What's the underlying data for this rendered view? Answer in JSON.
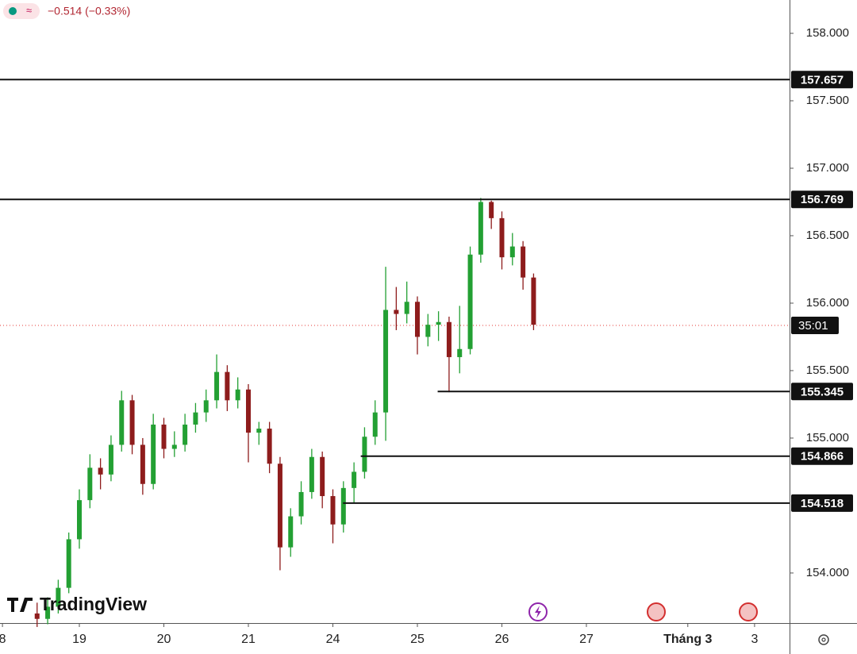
{
  "chart_data": {
    "type": "candlestick",
    "change_text": "−0.514 (−0.33%)",
    "watermark": "TradingView",
    "up_color": "#23a033",
    "down_color": "#8e1c1c",
    "xlim": [
      0.061,
      9.404
    ],
    "ylim": [
      153.629,
      158.247
    ],
    "xticks": [
      {
        "value": 0.09,
        "label": "8"
      },
      {
        "value": 1,
        "label": "19"
      },
      {
        "value": 2,
        "label": "20"
      },
      {
        "value": 3,
        "label": "21"
      },
      {
        "value": 4,
        "label": "24"
      },
      {
        "value": 5,
        "label": "25"
      },
      {
        "value": 6,
        "label": "26"
      },
      {
        "value": 7,
        "label": "27"
      },
      {
        "value": 8.2,
        "label": "Tháng 3"
      },
      {
        "value": 8.99,
        "label": "3"
      }
    ],
    "yticks": [
      {
        "value": 154,
        "label": "154.000"
      },
      {
        "value": 155,
        "label": "155.000"
      },
      {
        "value": 155.5,
        "label": "155.500"
      },
      {
        "value": 156,
        "label": "156.000"
      },
      {
        "value": 156.5,
        "label": "156.500"
      },
      {
        "value": 157,
        "label": "157.000"
      },
      {
        "value": 157.5,
        "label": "157.500"
      },
      {
        "value": 158,
        "label": "158.000"
      }
    ],
    "x": [
      0.5,
      0.625,
      0.75,
      0.875,
      1,
      1.125,
      1.25,
      1.375,
      1.5,
      1.625,
      1.75,
      1.875,
      2,
      2.125,
      2.25,
      2.375,
      2.5,
      2.625,
      2.75,
      2.875,
      3,
      3.125,
      3.25,
      3.375,
      3.5,
      3.625,
      3.75,
      3.875,
      4,
      4.125,
      4.25,
      4.375,
      4.5,
      4.625,
      4.75,
      4.875,
      5,
      5.125,
      5.25,
      5.375,
      5.5,
      5.625,
      5.75,
      5.875,
      6,
      6.125,
      6.25,
      6.375
    ],
    "open": [
      153.7,
      153.66,
      153.75,
      153.89,
      154.25,
      154.54,
      154.78,
      154.73,
      154.95,
      155.28,
      154.95,
      154.66,
      155.1,
      154.92,
      154.95,
      155.1,
      155.19,
      155.28,
      155.49,
      155.28,
      155.36,
      155.04,
      155.07,
      154.81,
      154.19,
      154.42,
      154.6,
      154.86,
      154.57,
      154.36,
      154.63,
      154.75,
      155.01,
      155.19,
      155.95,
      155.92,
      156.01,
      155.75,
      155.84,
      155.86,
      155.6,
      155.66,
      156.36,
      156.75,
      156.63,
      156.34,
      156.42,
      156.19
    ],
    "high": [
      153.78,
      153.82,
      153.95,
      154.3,
      154.62,
      154.88,
      154.85,
      155.02,
      155.35,
      155.32,
      155.0,
      155.18,
      155.15,
      155.05,
      155.18,
      155.26,
      155.36,
      155.62,
      155.54,
      155.45,
      155.4,
      155.12,
      155.12,
      154.86,
      154.48,
      154.68,
      154.92,
      154.9,
      154.62,
      154.68,
      154.82,
      155.08,
      155.28,
      156.27,
      156.12,
      156.16,
      156.05,
      155.92,
      155.94,
      155.9,
      155.98,
      156.42,
      156.78,
      156.76,
      156.68,
      156.52,
      156.46,
      156.22
    ],
    "low": [
      153.6,
      153.62,
      153.7,
      153.85,
      154.18,
      154.48,
      154.62,
      154.68,
      154.9,
      154.88,
      154.58,
      154.62,
      154.85,
      154.86,
      154.9,
      155.04,
      155.12,
      155.22,
      155.2,
      155.22,
      154.82,
      154.95,
      154.74,
      154.02,
      154.12,
      154.36,
      154.55,
      154.48,
      154.22,
      154.3,
      154.52,
      154.7,
      154.95,
      154.98,
      155.8,
      155.85,
      155.62,
      155.68,
      155.72,
      155.34,
      155.48,
      155.62,
      156.3,
      156.55,
      156.25,
      156.28,
      156.1,
      155.8
    ],
    "close": [
      153.66,
      153.75,
      153.89,
      154.25,
      154.54,
      154.78,
      154.73,
      154.95,
      155.28,
      154.95,
      154.66,
      155.1,
      154.92,
      154.95,
      155.1,
      155.19,
      155.28,
      155.49,
      155.28,
      155.36,
      155.04,
      155.07,
      154.81,
      154.19,
      154.42,
      154.6,
      154.86,
      154.57,
      154.36,
      154.63,
      154.75,
      155.01,
      155.19,
      155.95,
      155.92,
      156.01,
      155.75,
      155.84,
      155.86,
      155.6,
      155.66,
      156.36,
      156.75,
      156.63,
      156.34,
      156.42,
      156.19,
      155.84
    ],
    "levels": [
      {
        "value": 157.657,
        "label": "157.657"
      },
      {
        "value": 156.769,
        "label": "156.769"
      },
      {
        "value": 155.345,
        "label": "155.345",
        "x_start": 5.24
      },
      {
        "value": 154.866,
        "label": "154.866",
        "x_start": 4.33
      },
      {
        "value": 154.518,
        "label": "154.518",
        "x_start": 4.12
      }
    ],
    "price_line": {
      "value": 155.835,
      "label": "35:01"
    }
  }
}
